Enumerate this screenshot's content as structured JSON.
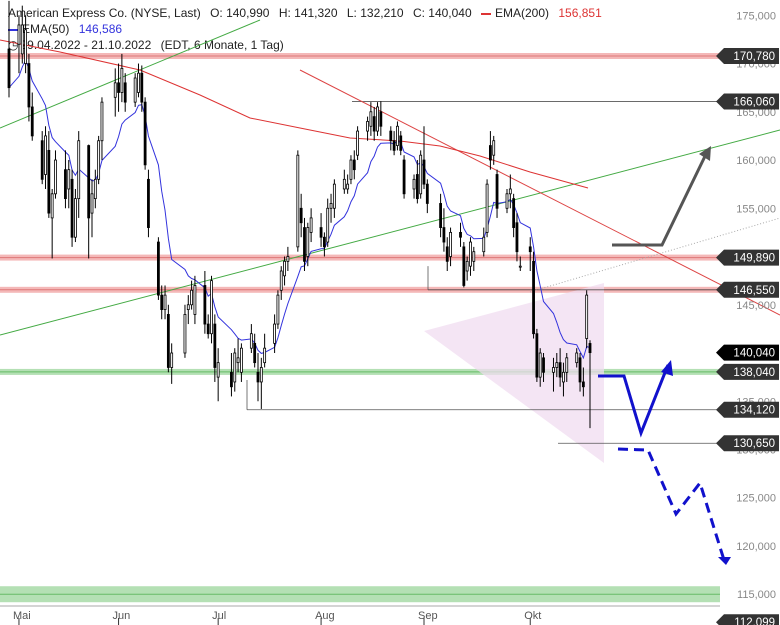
{
  "header": {
    "instrument": "American Express Co. (NYSE, Last)",
    "open": "O: 140,990",
    "high": "H: 141,320",
    "low": "L: 132,210",
    "close": "C: 140,040",
    "ema200_label": "EMA(200)",
    "ema200_value": "156,851",
    "ema50_label": "EMA(50)",
    "ema50_value": "146,586",
    "range": "29.04.2022 - 21.10.2022",
    "period": "(EDT, 6 Monate, 1 Tag)"
  },
  "colors": {
    "candle": "#000000",
    "ema50": "#3333dd",
    "ema200": "#dd3333",
    "resistance": "#f4b8b8",
    "support": "#b4e0b4",
    "trend_green": "#44aa44",
    "trend_red": "#dd4444",
    "forecast_grey": "#555555",
    "forecast_blue": "#1111cc",
    "triangle": "#f0dcf0",
    "label_bg": "#333333",
    "label_dark": "#000000"
  },
  "chart_data": {
    "type": "candlestick",
    "ylim": [
      111.5,
      177
    ],
    "grid": false,
    "legend": "top-left",
    "y_ticks": [
      115000,
      120000,
      125000,
      130000,
      135000,
      140000,
      145000,
      150000,
      155000,
      160000,
      165000,
      170000,
      175000
    ],
    "y_tick_labels": [
      "115,000",
      "120,000",
      "125,000",
      "130,000",
      "135,000",
      "140,000",
      "145,000",
      "150,000",
      "155,000",
      "160,000",
      "165,000",
      "170,000",
      "175,000"
    ],
    "x_labels": [
      {
        "date": "2022-05-02",
        "label": "Mai"
      },
      {
        "date": "2022-06-01",
        "label": "Jun"
      },
      {
        "date": "2022-07-01",
        "label": "Jul"
      },
      {
        "date": "2022-08-01",
        "label": "Aug"
      },
      {
        "date": "2022-09-01",
        "label": "Sep"
      },
      {
        "date": "2022-10-03",
        "label": "Okt"
      }
    ],
    "levels": [
      {
        "value": 170.78,
        "label": "170,780",
        "zone": "resistance"
      },
      {
        "value": 166.06,
        "label": "166,060",
        "zone": "none"
      },
      {
        "value": 149.89,
        "label": "149,890",
        "zone": "resistance"
      },
      {
        "value": 146.55,
        "label": "146,550",
        "zone": "resistance"
      },
      {
        "value": 140.04,
        "label": "140,040",
        "zone": "current"
      },
      {
        "value": 138.04,
        "label": "138,040",
        "zone": "support"
      },
      {
        "value": 134.12,
        "label": "134,120",
        "zone": "none"
      },
      {
        "value": 130.65,
        "label": "130,650",
        "zone": "none"
      },
      {
        "value": 115.0,
        "label": "",
        "zone": "support"
      },
      {
        "value": 112.099,
        "label": "112,099",
        "zone": "none"
      }
    ],
    "candles": [
      {
        "date": "2022-04-29",
        "o": 171.5,
        "h": 176.5,
        "l": 166.5,
        "c": 167.5
      },
      {
        "date": "2022-05-02",
        "o": 172.0,
        "h": 175.0,
        "l": 169.0,
        "c": 174.0
      },
      {
        "date": "2022-05-03",
        "o": 171.0,
        "h": 176.0,
        "l": 170.0,
        "c": 174.0
      },
      {
        "date": "2022-05-04",
        "o": 170.0,
        "h": 175.0,
        "l": 169.0,
        "c": 173.5
      },
      {
        "date": "2022-05-05",
        "o": 170.0,
        "h": 171.0,
        "l": 164.0,
        "c": 165.5
      },
      {
        "date": "2022-05-06",
        "o": 165.5,
        "h": 167.0,
        "l": 162.0,
        "c": 162.5
      },
      {
        "date": "2022-05-09",
        "o": 162.0,
        "h": 163.0,
        "l": 157.5,
        "c": 158.0
      },
      {
        "date": "2022-05-10",
        "o": 158.5,
        "h": 163.5,
        "l": 157.0,
        "c": 162.5
      },
      {
        "date": "2022-05-11",
        "o": 161.0,
        "h": 163.0,
        "l": 154.0,
        "c": 154.5
      },
      {
        "date": "2022-05-12",
        "o": 154.0,
        "h": 157.0,
        "l": 149.8,
        "c": 156.5
      },
      {
        "date": "2022-05-13",
        "o": 156.5,
        "h": 161.0,
        "l": 156.0,
        "c": 160.0
      },
      {
        "date": "2022-05-16",
        "o": 159.0,
        "h": 161.0,
        "l": 155.0,
        "c": 156.0
      },
      {
        "date": "2022-05-17",
        "o": 157.0,
        "h": 160.0,
        "l": 155.0,
        "c": 159.0
      },
      {
        "date": "2022-05-18",
        "o": 158.0,
        "h": 159.0,
        "l": 151.0,
        "c": 152.0
      },
      {
        "date": "2022-05-19",
        "o": 152.0,
        "h": 157.0,
        "l": 151.5,
        "c": 156.0
      },
      {
        "date": "2022-05-20",
        "o": 156.0,
        "h": 163.0,
        "l": 154.0,
        "c": 162.0
      },
      {
        "date": "2022-05-23",
        "o": 161.5,
        "h": 161.6,
        "l": 149.8,
        "c": 154.0
      },
      {
        "date": "2022-05-24",
        "o": 154.5,
        "h": 158.0,
        "l": 152.0,
        "c": 156.5
      },
      {
        "date": "2022-05-25",
        "o": 156.0,
        "h": 159.0,
        "l": 155.0,
        "c": 158.0
      },
      {
        "date": "2022-05-26",
        "o": 158.0,
        "h": 162.5,
        "l": 157.5,
        "c": 162.0
      },
      {
        "date": "2022-05-27",
        "o": 162.0,
        "h": 166.5,
        "l": 160.0,
        "c": 166.0
      },
      {
        "date": "2022-05-31",
        "o": 166.5,
        "h": 169.5,
        "l": 164.5,
        "c": 168.0
      },
      {
        "date": "2022-06-01",
        "o": 168.0,
        "h": 170.0,
        "l": 165.0,
        "c": 167.0
      },
      {
        "date": "2022-06-02",
        "o": 167.0,
        "h": 171.0,
        "l": 166.0,
        "c": 169.5
      },
      {
        "date": "2022-06-03",
        "o": 168.0,
        "h": 169.0,
        "l": 165.0,
        "c": 166.0
      },
      {
        "date": "2022-06-06",
        "o": 166.0,
        "h": 169.0,
        "l": 165.5,
        "c": 168.5
      },
      {
        "date": "2022-06-07",
        "o": 167.0,
        "h": 170.0,
        "l": 166.5,
        "c": 169.0
      },
      {
        "date": "2022-06-08",
        "o": 169.0,
        "h": 169.8,
        "l": 165.0,
        "c": 166.0
      },
      {
        "date": "2022-06-09",
        "o": 166.0,
        "h": 166.5,
        "l": 159.0,
        "c": 159.5
      },
      {
        "date": "2022-06-10",
        "o": 158.0,
        "h": 159.0,
        "l": 152.0,
        "c": 153.0
      },
      {
        "date": "2022-06-13",
        "o": 151.5,
        "h": 152.0,
        "l": 145.5,
        "c": 146.0
      },
      {
        "date": "2022-06-14",
        "o": 146.0,
        "h": 147.0,
        "l": 143.5,
        "c": 144.5
      },
      {
        "date": "2022-06-15",
        "o": 144.5,
        "h": 147.0,
        "l": 143.5,
        "c": 146.0
      },
      {
        "date": "2022-06-16",
        "o": 144.0,
        "h": 145.0,
        "l": 138.0,
        "c": 138.5
      },
      {
        "date": "2022-06-17",
        "o": 138.5,
        "h": 141.0,
        "l": 136.8,
        "c": 140.0
      },
      {
        "date": "2022-06-21",
        "o": 140.0,
        "h": 145.0,
        "l": 139.5,
        "c": 144.0
      },
      {
        "date": "2022-06-22",
        "o": 144.5,
        "h": 146.0,
        "l": 143.0,
        "c": 145.0
      },
      {
        "date": "2022-06-23",
        "o": 145.0,
        "h": 147.5,
        "l": 144.5,
        "c": 146.5
      },
      {
        "date": "2022-06-24",
        "o": 144.0,
        "h": 148.0,
        "l": 143.0,
        "c": 147.0
      },
      {
        "date": "2022-06-27",
        "o": 147.0,
        "h": 148.5,
        "l": 142.0,
        "c": 143.0
      },
      {
        "date": "2022-06-28",
        "o": 143.0,
        "h": 144.0,
        "l": 141.5,
        "c": 142.0
      },
      {
        "date": "2022-06-29",
        "o": 142.0,
        "h": 148.0,
        "l": 141.0,
        "c": 147.5
      },
      {
        "date": "2022-06-30",
        "o": 143.0,
        "h": 144.0,
        "l": 137.0,
        "c": 138.5
      },
      {
        "date": "2022-07-01",
        "o": 137.5,
        "h": 140.5,
        "l": 135.0,
        "c": 139.0
      },
      {
        "date": "2022-07-05",
        "o": 138.0,
        "h": 140.0,
        "l": 135.5,
        "c": 136.5
      },
      {
        "date": "2022-07-06",
        "o": 137.0,
        "h": 140.5,
        "l": 136.0,
        "c": 140.0
      },
      {
        "date": "2022-07-07",
        "o": 139.0,
        "h": 141.5,
        "l": 138.0,
        "c": 139.5
      },
      {
        "date": "2022-07-08",
        "o": 138.0,
        "h": 141.0,
        "l": 137.0,
        "c": 140.5
      },
      {
        "date": "2022-07-11",
        "o": 140.5,
        "h": 143.0,
        "l": 140.0,
        "c": 142.0
      },
      {
        "date": "2022-07-12",
        "o": 141.0,
        "h": 142.0,
        "l": 138.5,
        "c": 139.0
      },
      {
        "date": "2022-07-13",
        "o": 138.0,
        "h": 140.0,
        "l": 135.0,
        "c": 137.0
      },
      {
        "date": "2022-07-14",
        "o": 137.0,
        "h": 139.5,
        "l": 134.2,
        "c": 138.5
      },
      {
        "date": "2022-07-15",
        "o": 139.0,
        "h": 142.0,
        "l": 138.5,
        "c": 140.5
      },
      {
        "date": "2022-07-18",
        "o": 141.0,
        "h": 144.0,
        "l": 140.0,
        "c": 143.0
      },
      {
        "date": "2022-07-19",
        "o": 143.0,
        "h": 146.5,
        "l": 142.5,
        "c": 146.0
      },
      {
        "date": "2022-07-20",
        "o": 146.5,
        "h": 149.0,
        "l": 145.5,
        "c": 148.5
      },
      {
        "date": "2022-07-21",
        "o": 148.0,
        "h": 150.0,
        "l": 147.0,
        "c": 149.5
      },
      {
        "date": "2022-07-22",
        "o": 149.5,
        "h": 151.0,
        "l": 148.5,
        "c": 150.0
      },
      {
        "date": "2022-07-25",
        "o": 151.0,
        "h": 161.0,
        "l": 150.5,
        "c": 160.5
      },
      {
        "date": "2022-07-26",
        "o": 155.0,
        "h": 156.5,
        "l": 152.0,
        "c": 153.5
      },
      {
        "date": "2022-07-27",
        "o": 153.0,
        "h": 154.0,
        "l": 148.5,
        "c": 149.5
      },
      {
        "date": "2022-07-28",
        "o": 150.0,
        "h": 153.5,
        "l": 149.0,
        "c": 153.0
      },
      {
        "date": "2022-07-29",
        "o": 152.5,
        "h": 155.0,
        "l": 151.5,
        "c": 154.0
      },
      {
        "date": "2022-08-01",
        "o": 153.0,
        "h": 154.5,
        "l": 151.0,
        "c": 152.0
      },
      {
        "date": "2022-08-02",
        "o": 152.0,
        "h": 152.5,
        "l": 150.0,
        "c": 151.0
      },
      {
        "date": "2022-08-03",
        "o": 151.5,
        "h": 156.0,
        "l": 151.0,
        "c": 155.0
      },
      {
        "date": "2022-08-04",
        "o": 155.0,
        "h": 156.5,
        "l": 153.5,
        "c": 155.5
      },
      {
        "date": "2022-08-05",
        "o": 155.0,
        "h": 158.0,
        "l": 154.0,
        "c": 157.5
      },
      {
        "date": "2022-08-08",
        "o": 157.0,
        "h": 159.0,
        "l": 156.5,
        "c": 158.0
      },
      {
        "date": "2022-08-09",
        "o": 157.0,
        "h": 158.5,
        "l": 156.5,
        "c": 157.5
      },
      {
        "date": "2022-08-10",
        "o": 158.0,
        "h": 160.5,
        "l": 157.5,
        "c": 160.0
      },
      {
        "date": "2022-08-11",
        "o": 160.0,
        "h": 161.0,
        "l": 158.0,
        "c": 159.0
      },
      {
        "date": "2022-08-12",
        "o": 160.5,
        "h": 163.5,
        "l": 160.0,
        "c": 163.0
      },
      {
        "date": "2022-08-15",
        "o": 163.0,
        "h": 164.5,
        "l": 162.0,
        "c": 164.0
      },
      {
        "date": "2022-08-16",
        "o": 163.5,
        "h": 166.0,
        "l": 162.5,
        "c": 165.0
      },
      {
        "date": "2022-08-17",
        "o": 164.5,
        "h": 165.5,
        "l": 162.0,
        "c": 163.0
      },
      {
        "date": "2022-08-18",
        "o": 163.0,
        "h": 166.0,
        "l": 162.5,
        "c": 165.5
      },
      {
        "date": "2022-08-19",
        "o": 165.0,
        "h": 166.1,
        "l": 162.5,
        "c": 163.5
      },
      {
        "date": "2022-08-22",
        "o": 163.0,
        "h": 163.5,
        "l": 161.0,
        "c": 162.0
      },
      {
        "date": "2022-08-23",
        "o": 162.0,
        "h": 163.0,
        "l": 160.5,
        "c": 161.0
      },
      {
        "date": "2022-08-24",
        "o": 161.5,
        "h": 164.0,
        "l": 161.0,
        "c": 163.5
      },
      {
        "date": "2022-08-25",
        "o": 162.5,
        "h": 163.0,
        "l": 160.5,
        "c": 161.0
      },
      {
        "date": "2022-08-26",
        "o": 160.0,
        "h": 160.5,
        "l": 156.0,
        "c": 156.5
      },
      {
        "date": "2022-08-29",
        "o": 157.0,
        "h": 158.5,
        "l": 156.0,
        "c": 158.0
      },
      {
        "date": "2022-08-30",
        "o": 158.5,
        "h": 160.0,
        "l": 155.5,
        "c": 156.0
      },
      {
        "date": "2022-08-31",
        "o": 156.5,
        "h": 161.0,
        "l": 156.0,
        "c": 160.5
      },
      {
        "date": "2022-09-01",
        "o": 160.0,
        "h": 163.5,
        "l": 157.0,
        "c": 157.5
      },
      {
        "date": "2022-09-02",
        "o": 157.5,
        "h": 158.0,
        "l": 154.5,
        "c": 155.5
      },
      {
        "date": "2022-09-06",
        "o": 155.5,
        "h": 156.5,
        "l": 152.0,
        "c": 153.0
      },
      {
        "date": "2022-09-07",
        "o": 153.0,
        "h": 155.0,
        "l": 150.5,
        "c": 151.5
      },
      {
        "date": "2022-09-08",
        "o": 151.0,
        "h": 152.0,
        "l": 148.5,
        "c": 149.5
      },
      {
        "date": "2022-09-09",
        "o": 150.0,
        "h": 153.0,
        "l": 149.0,
        "c": 152.5
      },
      {
        "date": "2022-09-12",
        "o": 152.5,
        "h": 153.5,
        "l": 151.0,
        "c": 152.0
      },
      {
        "date": "2022-09-13",
        "o": 151.0,
        "h": 151.5,
        "l": 146.8,
        "c": 147.0
      },
      {
        "date": "2022-09-14",
        "o": 148.5,
        "h": 150.0,
        "l": 147.5,
        "c": 149.5
      },
      {
        "date": "2022-09-15",
        "o": 149.0,
        "h": 152.0,
        "l": 148.0,
        "c": 151.5
      },
      {
        "date": "2022-09-16",
        "o": 149.5,
        "h": 151.0,
        "l": 148.5,
        "c": 150.5
      },
      {
        "date": "2022-09-19",
        "o": 150.5,
        "h": 153.0,
        "l": 150.0,
        "c": 152.0
      },
      {
        "date": "2022-09-20",
        "o": 152.5,
        "h": 158.0,
        "l": 152.0,
        "c": 157.5
      },
      {
        "date": "2022-09-21",
        "o": 161.5,
        "h": 163.0,
        "l": 159.0,
        "c": 160.0
      },
      {
        "date": "2022-09-22",
        "o": 160.5,
        "h": 162.5,
        "l": 159.5,
        "c": 162.0
      },
      {
        "date": "2022-09-23",
        "o": 158.5,
        "h": 159.0,
        "l": 154.0,
        "c": 155.0
      },
      {
        "date": "2022-09-26",
        "o": 155.0,
        "h": 157.0,
        "l": 154.5,
        "c": 156.5
      },
      {
        "date": "2022-09-27",
        "o": 156.5,
        "h": 158.5,
        "l": 155.0,
        "c": 157.0
      },
      {
        "date": "2022-09-28",
        "o": 156.0,
        "h": 156.5,
        "l": 152.0,
        "c": 153.0
      },
      {
        "date": "2022-09-29",
        "o": 153.5,
        "h": 154.5,
        "l": 149.5,
        "c": 150.5
      },
      {
        "date": "2022-09-30",
        "o": 149.0,
        "h": 150.0,
        "l": 148.5,
        "c": 149.0
      },
      {
        "date": "2022-10-03",
        "o": 151.0,
        "h": 152.0,
        "l": 148.5,
        "c": 150.5
      },
      {
        "date": "2022-10-04",
        "o": 149.5,
        "h": 150.5,
        "l": 141.5,
        "c": 142.0
      },
      {
        "date": "2022-10-05",
        "o": 142.0,
        "h": 142.5,
        "l": 137.0,
        "c": 137.5
      },
      {
        "date": "2022-10-06",
        "o": 137.5,
        "h": 140.5,
        "l": 136.5,
        "c": 140.0
      },
      {
        "date": "2022-10-07",
        "o": 139.5,
        "h": 140.0,
        "l": 137.0,
        "c": 138.0
      },
      {
        "date": "2022-10-10",
        "o": 138.0,
        "h": 139.5,
        "l": 136.0,
        "c": 138.5
      },
      {
        "date": "2022-10-11",
        "o": 138.5,
        "h": 140.0,
        "l": 137.5,
        "c": 139.0
      },
      {
        "date": "2022-10-12",
        "o": 139.0,
        "h": 140.5,
        "l": 136.5,
        "c": 137.5
      },
      {
        "date": "2022-10-13",
        "o": 137.0,
        "h": 139.0,
        "l": 135.5,
        "c": 138.0
      },
      {
        "date": "2022-10-14",
        "o": 138.0,
        "h": 140.0,
        "l": 137.0,
        "c": 139.5
      },
      {
        "date": "2022-10-17",
        "o": 139.0,
        "h": 140.5,
        "l": 138.5,
        "c": 140.0
      },
      {
        "date": "2022-10-18",
        "o": 139.5,
        "h": 140.0,
        "l": 136.0,
        "c": 137.0
      },
      {
        "date": "2022-10-19",
        "o": 137.0,
        "h": 138.5,
        "l": 135.5,
        "c": 136.5
      },
      {
        "date": "2022-10-20",
        "o": 141.5,
        "h": 146.5,
        "l": 140.5,
        "c": 146.0
      },
      {
        "date": "2022-10-21",
        "o": 140.99,
        "h": 141.32,
        "l": 132.21,
        "c": 140.04
      }
    ]
  }
}
